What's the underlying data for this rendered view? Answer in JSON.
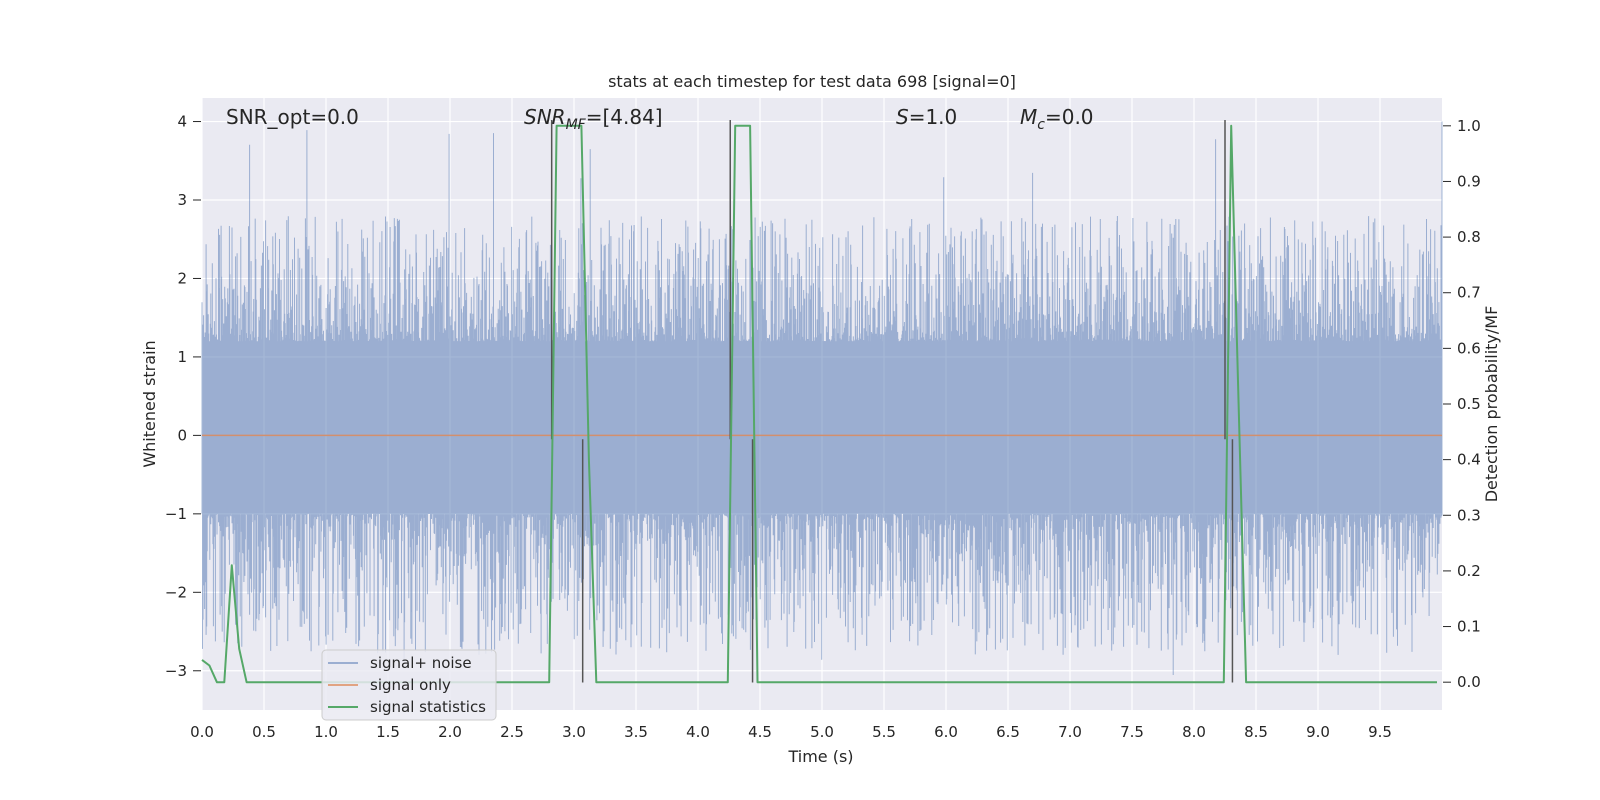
{
  "chart_data": {
    "type": "line",
    "title": "stats at each timestep for test data 698 [signal=0]",
    "xlabel": "Time (s)",
    "ylabel": "Whitened strain",
    "y2label": "Detection probability/MF",
    "xlim": [
      0.0,
      10.0
    ],
    "ylim": [
      -3.5,
      4.3
    ],
    "y2lim": [
      -0.05,
      1.05
    ],
    "x_ticks": [
      0.0,
      0.5,
      1.0,
      1.5,
      2.0,
      2.5,
      3.0,
      3.5,
      4.0,
      4.5,
      5.0,
      5.5,
      6.0,
      6.5,
      7.0,
      7.5,
      8.0,
      8.5,
      9.0,
      9.5
    ],
    "x_tick_labels": [
      "0.0",
      "0.5",
      "1.0",
      "1.5",
      "2.0",
      "2.5",
      "3.0",
      "3.5",
      "4.0",
      "4.5",
      "5.0",
      "5.5",
      "6.0",
      "6.5",
      "7.0",
      "7.5",
      "8.0",
      "8.5",
      "9.0",
      "9.5"
    ],
    "y_ticks": [
      -3,
      -2,
      -1,
      0,
      1,
      2,
      3,
      4
    ],
    "y_tick_labels": [
      "−3",
      "−2",
      "−1",
      "0",
      "1",
      "2",
      "3",
      "4"
    ],
    "y2_ticks": [
      0.0,
      0.1,
      0.2,
      0.3,
      0.4,
      0.5,
      0.6,
      0.7,
      0.8,
      0.9,
      1.0
    ],
    "y2_tick_labels": [
      "0.0",
      "0.1",
      "0.2",
      "0.3",
      "0.4",
      "0.5",
      "0.6",
      "0.7",
      "0.8",
      "0.9",
      "1.0"
    ],
    "grid": true,
    "legend_position": "lower-left",
    "annotations": {
      "snr_opt": "SNR_opt=0.0",
      "snr_mf_symbol": "SNR",
      "snr_mf_sub": "MF",
      "snr_mf_value": "=[4.84]",
      "s_symbol": "S",
      "s_value": "=1.0",
      "mc_symbol": "M",
      "mc_sub": "c",
      "mc_value": "=0.0"
    },
    "series": [
      {
        "name": "signal+ noise",
        "color": "#4c72b0",
        "kind": "noise",
        "x_range": [
          0.0,
          10.0
        ],
        "band_low": -1.0,
        "band_high": 1.2,
        "max_peak": 4.0,
        "min_peak": -3.1
      },
      {
        "name": "signal only",
        "color": "#dd8452",
        "x": [
          0.0,
          10.0
        ],
        "values": [
          0.0,
          0.0
        ]
      },
      {
        "name": "signal statistics",
        "color": "#55a868",
        "axis": "right",
        "x": [
          0.0,
          0.06,
          0.12,
          0.18,
          0.24,
          0.3,
          0.36,
          2.8,
          2.86,
          2.92,
          3.0,
          3.06,
          3.12,
          3.18,
          4.24,
          4.3,
          4.36,
          4.42,
          4.48,
          8.24,
          8.3,
          8.36,
          8.42,
          9.96
        ],
        "values": [
          0.04,
          0.03,
          0.0,
          0.0,
          0.21,
          0.06,
          0.0,
          0.0,
          1.0,
          1.0,
          1.0,
          1.0,
          0.4,
          0.0,
          0.0,
          1.0,
          1.0,
          1.0,
          0.0,
          0.0,
          1.0,
          0.5,
          0.0,
          0.0
        ]
      }
    ],
    "vertical_markers": [
      {
        "x": 2.82,
        "y_top": 4.02,
        "y_bottom": -0.05
      },
      {
        "x": 3.07,
        "y_top": -0.05,
        "y_bottom": -3.15
      },
      {
        "x": 4.26,
        "y_top": 4.02,
        "y_bottom": -0.05
      },
      {
        "x": 4.44,
        "y_top": -0.05,
        "y_bottom": -3.15
      },
      {
        "x": 8.25,
        "y_top": 4.02,
        "y_bottom": -0.05
      },
      {
        "x": 8.31,
        "y_top": -0.05,
        "y_bottom": -3.15
      }
    ],
    "marker_color": "#555555"
  }
}
